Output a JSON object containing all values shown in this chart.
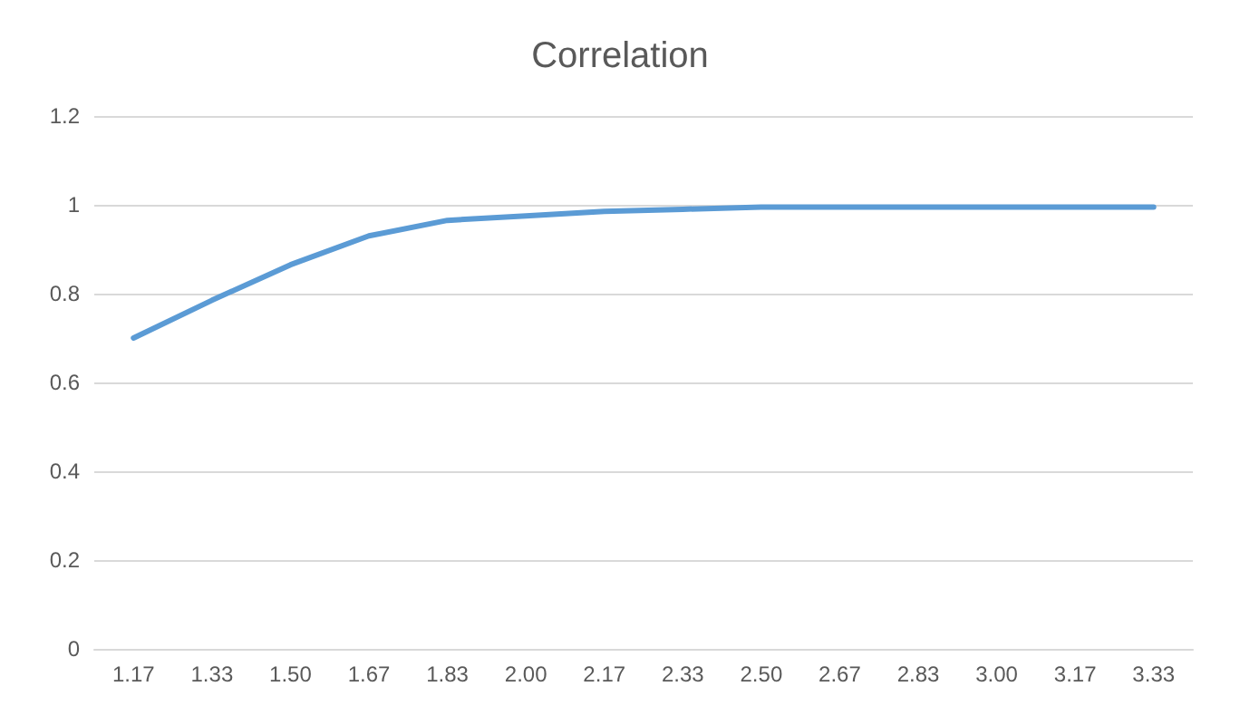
{
  "chart_data": {
    "type": "line",
    "title": "Correlation",
    "categories": [
      "1.17",
      "1.33",
      "1.50",
      "1.67",
      "1.83",
      "2.00",
      "2.17",
      "2.33",
      "2.50",
      "2.67",
      "2.83",
      "3.00",
      "3.17",
      "3.33"
    ],
    "series": [
      {
        "color": "#5b9bd5",
        "values": [
          0.7,
          0.785,
          0.865,
          0.93,
          0.965,
          0.975,
          0.985,
          0.99,
          0.995,
          0.995,
          0.995,
          0.995,
          0.995,
          0.995
        ]
      }
    ],
    "ylim": [
      0,
      1.2
    ],
    "yticks": [
      0,
      0.2,
      0.4,
      0.6,
      0.8,
      1,
      1.2
    ],
    "grid": "y",
    "marker": "none",
    "line_style": "solid"
  }
}
